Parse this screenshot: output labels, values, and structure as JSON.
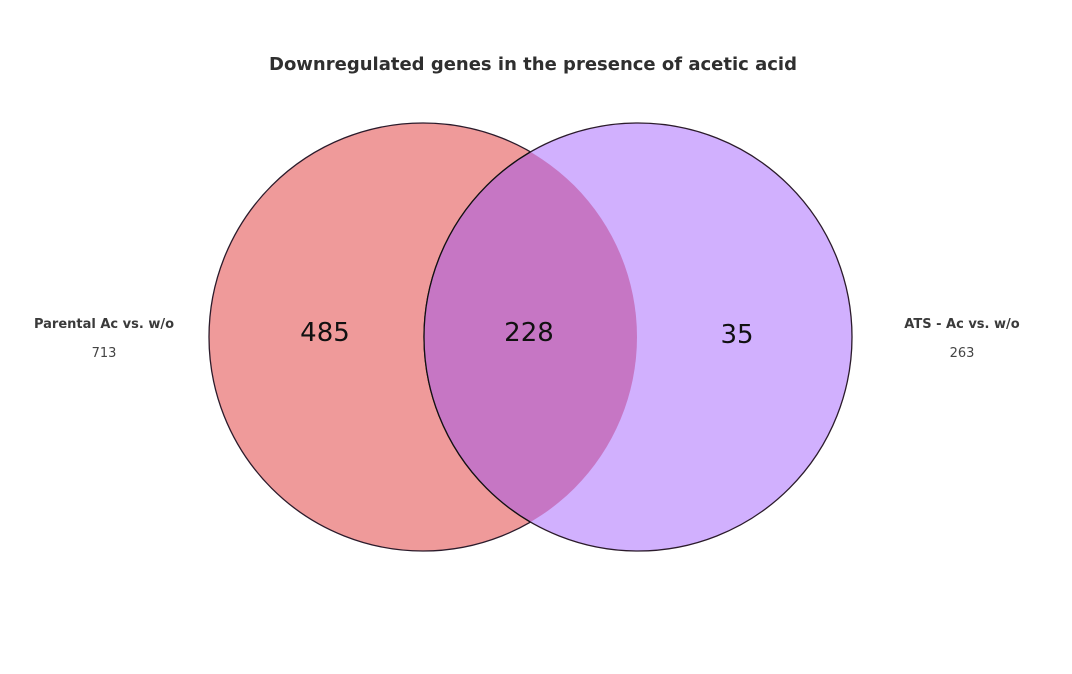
{
  "chart_data": {
    "type": "venn",
    "title": "Downregulated genes in the presence of acetic acid",
    "sets": [
      {
        "name": "Parental Ac vs. w/o",
        "total": "713",
        "color": "#ef9a9a"
      },
      {
        "name": "ATS - Ac vs. w/o",
        "total": "263",
        "color": "#d1b0fe"
      }
    ],
    "regions": {
      "left_only": "485",
      "intersection": "228",
      "right_only": "35"
    },
    "intersection_color": "#c676c4",
    "outline_color": "#2b1b2b"
  }
}
